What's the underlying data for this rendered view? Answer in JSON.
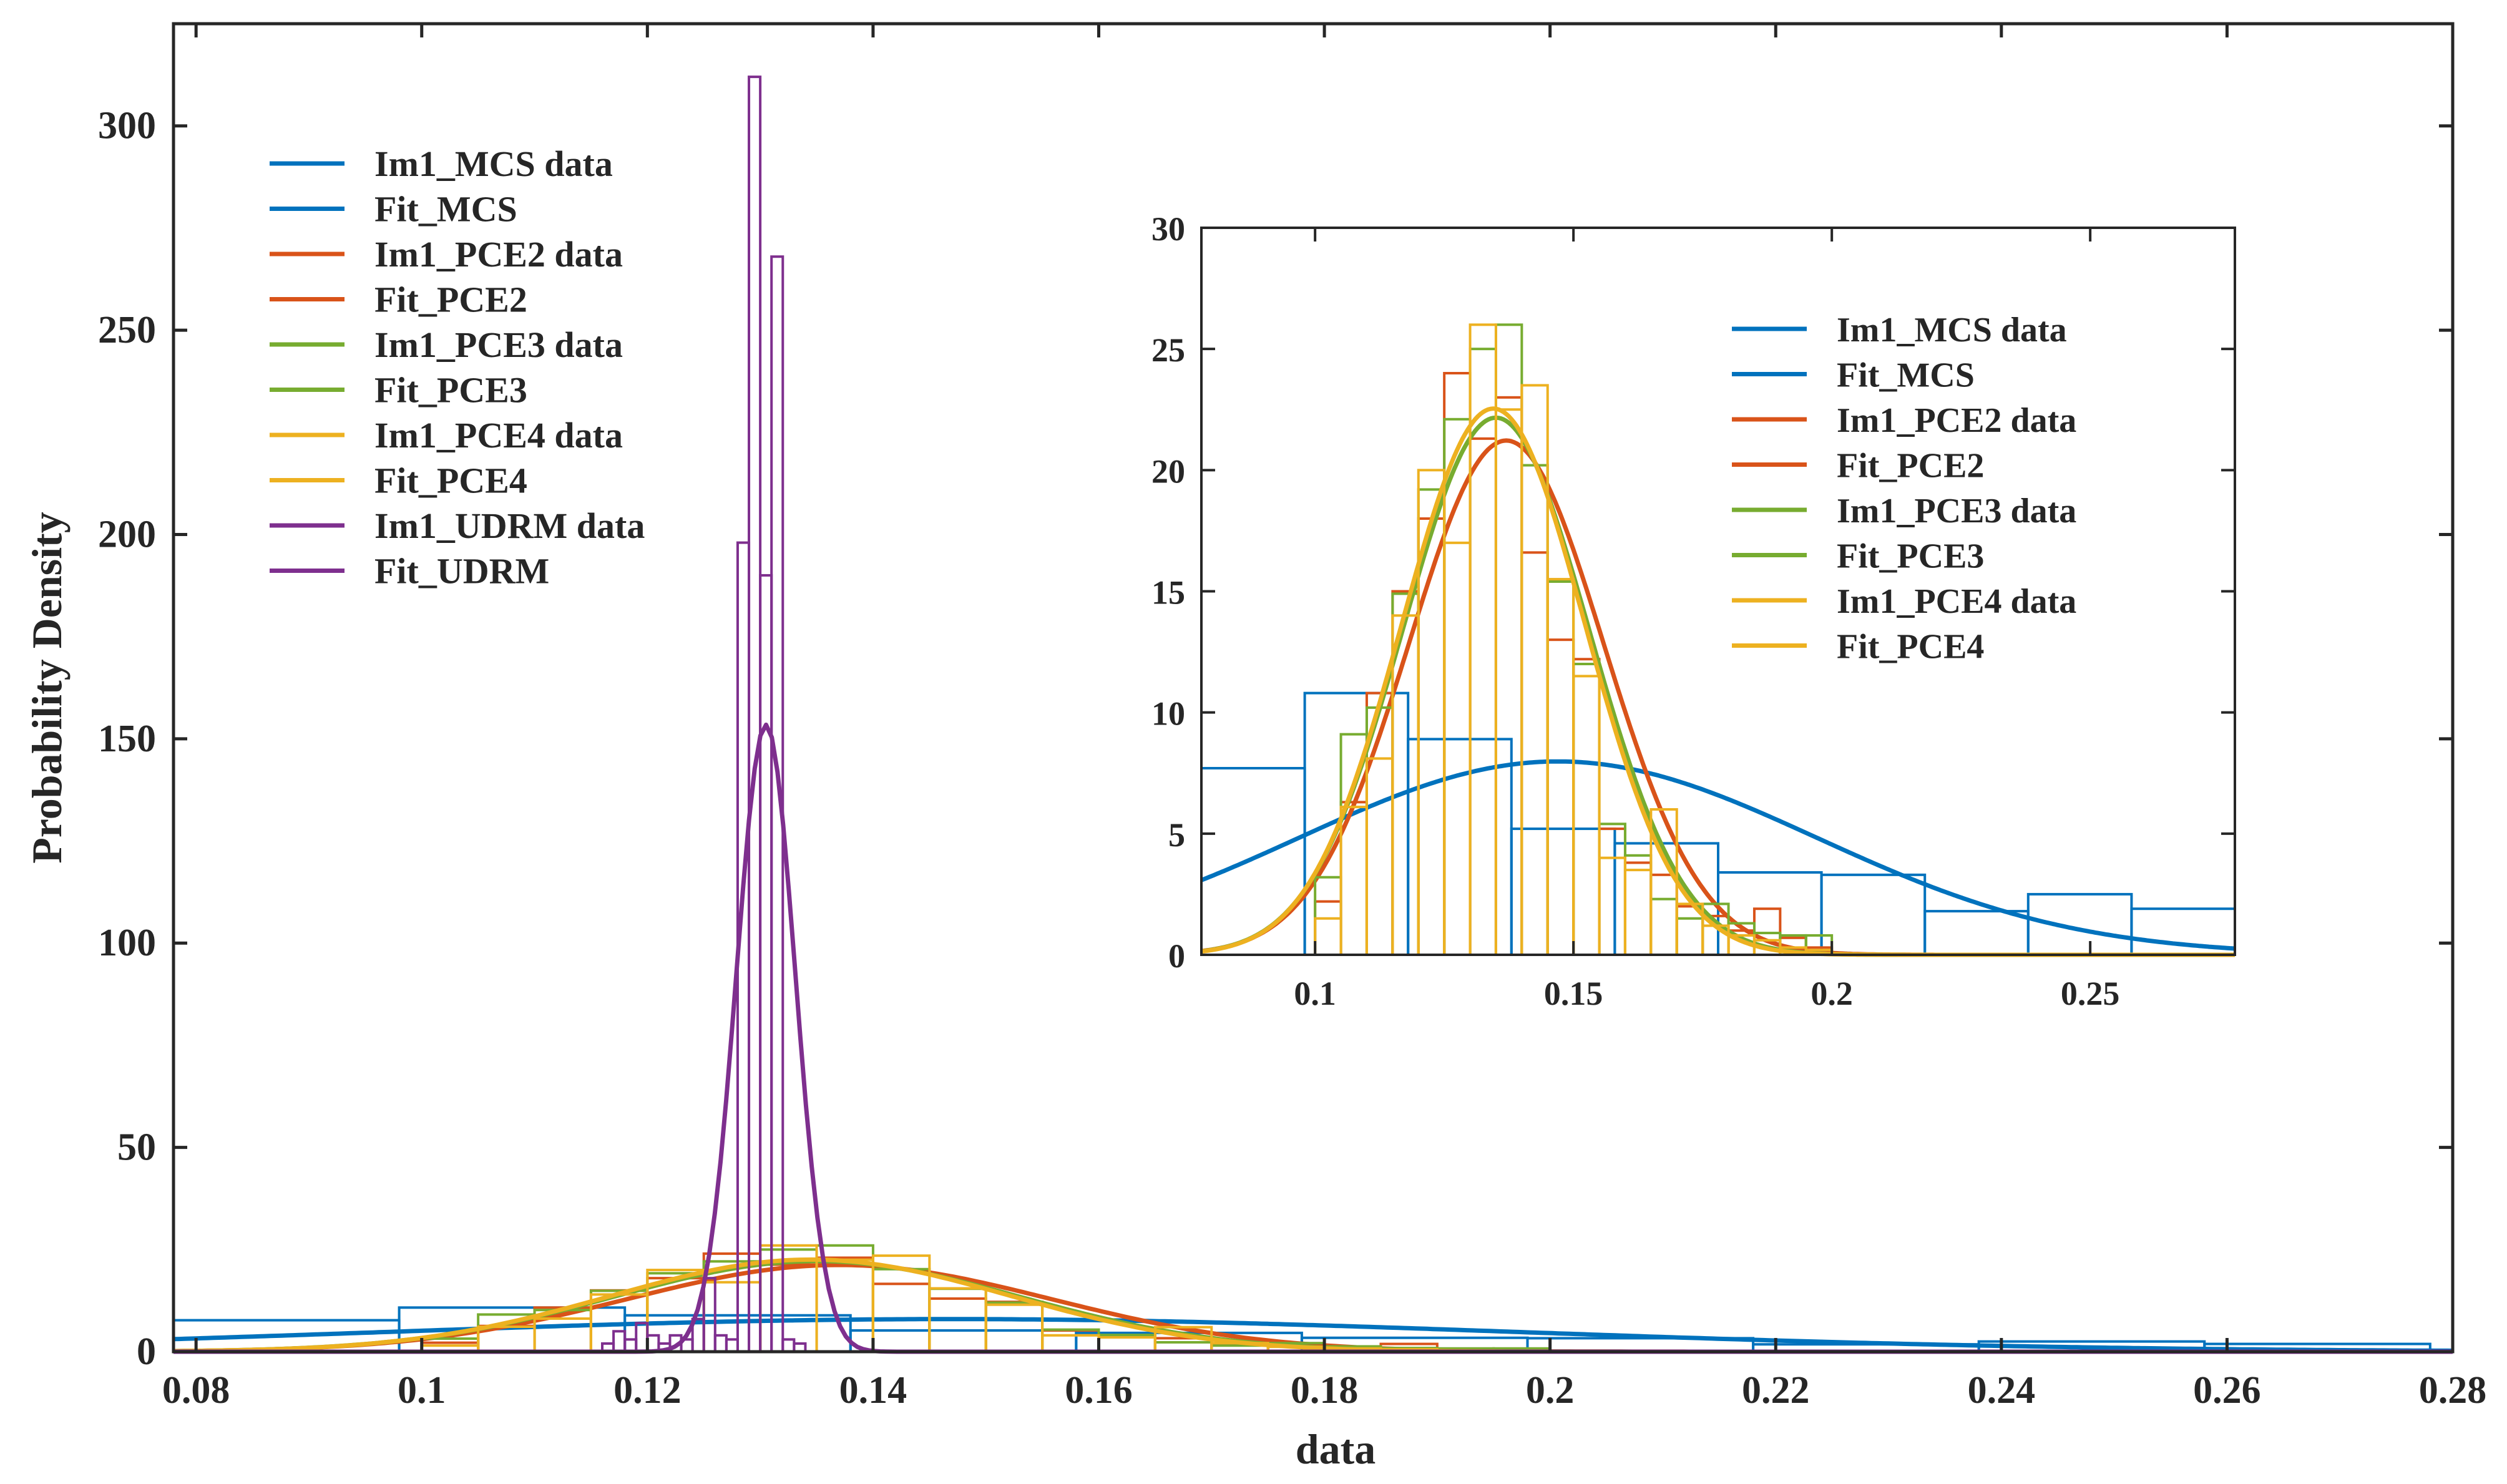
{
  "chart_data": [
    {
      "type": "histogram",
      "panel": "main",
      "xlabel": "data",
      "ylabel": "Probability Density",
      "xlim": [
        0.078,
        0.28
      ],
      "ylim": [
        0,
        325
      ],
      "xticks": [
        0.08,
        0.1,
        0.12,
        0.14,
        0.16,
        0.18,
        0.2,
        0.22,
        0.24,
        0.26,
        0.28
      ],
      "xtick_labels": [
        "0.08",
        "0.1",
        "0.12",
        "0.14",
        "0.16",
        "0.18",
        "0.2",
        "0.22",
        "0.24",
        "0.26",
        "0.28"
      ],
      "yticks": [
        0,
        50,
        100,
        150,
        200,
        250,
        300
      ],
      "ytick_labels": [
        "0",
        "50",
        "100",
        "150",
        "200",
        "250",
        "300"
      ],
      "legend_position": "top-left",
      "legend": [
        {
          "label": "Im1_MCS data",
          "color": "#0072BD"
        },
        {
          "label": "Fit_MCS",
          "color": "#0072BD"
        },
        {
          "label": "Im1_PCE2 data",
          "color": "#D95319"
        },
        {
          "label": "Fit_PCE2",
          "color": "#D95319"
        },
        {
          "label": "Im1_PCE3 data",
          "color": "#77AC30"
        },
        {
          "label": "Fit_PCE3",
          "color": "#77AC30"
        },
        {
          "label": "Im1_PCE4 data",
          "color": "#EDB120"
        },
        {
          "label": "Fit_PCE4",
          "color": "#EDB120"
        },
        {
          "label": "Im1_UDRM data",
          "color": "#7E2F8E"
        },
        {
          "label": "Fit_UDRM",
          "color": "#7E2F8E"
        }
      ],
      "series": [
        {
          "name": "Im1_MCS data",
          "kind": "histogram",
          "color": "#0072BD",
          "edges": [
            0.078,
            0.098,
            0.118,
            0.138,
            0.158,
            0.178,
            0.198,
            0.218,
            0.238,
            0.258,
            0.278
          ],
          "values": [
            7.7,
            10.8,
            8.9,
            5.2,
            4.6,
            3.4,
            3.3,
            1.8,
            2.5,
            1.9
          ]
        },
        {
          "name": "Fit_MCS",
          "kind": "normal",
          "color": "#0072BD",
          "mu": 0.147,
          "sigma": 0.05
        },
        {
          "name": "Im1_PCE2 data",
          "kind": "histogram",
          "color": "#D95319",
          "edges": [
            0.1,
            0.105,
            0.11,
            0.115,
            0.12,
            0.125,
            0.13,
            0.135,
            0.14,
            0.145,
            0.15,
            0.155,
            0.16,
            0.165,
            0.17,
            0.175,
            0.18,
            0.185,
            0.19,
            0.195,
            0.2
          ],
          "values": [
            2.2,
            6.3,
            10.8,
            15.0,
            18.0,
            24.0,
            21.3,
            23.0,
            16.6,
            13.0,
            12.2,
            5.2,
            3.8,
            3.3,
            2.0,
            1.6,
            1.0,
            1.9,
            0.7,
            0.3
          ]
        },
        {
          "name": "Fit_PCE2",
          "kind": "normal",
          "color": "#D95319",
          "mu": 0.137,
          "sigma": 0.0188
        },
        {
          "name": "Im1_PCE3 data",
          "kind": "histogram",
          "color": "#77AC30",
          "edges": [
            0.1,
            0.105,
            0.11,
            0.115,
            0.12,
            0.125,
            0.13,
            0.135,
            0.14,
            0.145,
            0.15,
            0.155,
            0.16,
            0.165,
            0.17,
            0.175,
            0.18,
            0.185,
            0.19,
            0.195,
            0.2
          ],
          "values": [
            3.2,
            9.1,
            10.2,
            14.9,
            19.2,
            22.1,
            25.0,
            26.0,
            20.2,
            15.4,
            12.0,
            5.4,
            4.1,
            2.3,
            1.5,
            2.1,
            1.3,
            0.9,
            0.8,
            0.8
          ]
        },
        {
          "name": "Fit_PCE3",
          "kind": "normal",
          "color": "#77AC30",
          "mu": 0.135,
          "sigma": 0.018
        },
        {
          "name": "Im1_PCE4 data",
          "kind": "histogram",
          "color": "#EDB120",
          "edges": [
            0.1,
            0.105,
            0.11,
            0.115,
            0.12,
            0.125,
            0.13,
            0.135,
            0.14,
            0.145,
            0.15,
            0.155,
            0.16,
            0.165,
            0.17,
            0.175,
            0.18,
            0.185,
            0.19,
            0.195,
            0.2
          ],
          "values": [
            1.5,
            6.1,
            8.1,
            14.0,
            20.0,
            17.0,
            26.0,
            22.5,
            23.5,
            15.5,
            11.5,
            4.0,
            3.5,
            6.0,
            2.1,
            1.2,
            0.8,
            0.6,
            0.3,
            0.2
          ]
        },
        {
          "name": "Fit_PCE4",
          "kind": "normal",
          "color": "#EDB120",
          "mu": 0.1345,
          "sigma": 0.0177
        },
        {
          "name": "Im1_UDRM data",
          "kind": "histogram",
          "color": "#7E2F8E",
          "edges": [
            0.116,
            0.117,
            0.118,
            0.119,
            0.12,
            0.121,
            0.122,
            0.123,
            0.124,
            0.125,
            0.126,
            0.127,
            0.128,
            0.129,
            0.13,
            0.131,
            0.132,
            0.133,
            0.134,
            0.135
          ],
          "values": [
            2,
            5,
            3,
            7,
            4,
            2,
            4,
            3,
            8,
            18,
            4,
            3,
            198,
            312,
            190,
            268,
            3,
            2,
            0
          ]
        },
        {
          "name": "Fit_UDRM",
          "kind": "normal",
          "color": "#7E2F8E",
          "mu": 0.1305,
          "sigma": 0.0026
        }
      ]
    },
    {
      "type": "histogram",
      "panel": "inset",
      "xlim": [
        0.078,
        0.278
      ],
      "ylim": [
        0,
        30
      ],
      "xticks": [
        0.1,
        0.15,
        0.2,
        0.25
      ],
      "xtick_labels": [
        "0.1",
        "0.15",
        "0.2",
        "0.25"
      ],
      "yticks": [
        0,
        5,
        10,
        15,
        20,
        25,
        30
      ],
      "ytick_labels": [
        "0",
        "5",
        "10",
        "15",
        "20",
        "25",
        "30"
      ],
      "legend_position": "top-right",
      "legend": [
        {
          "label": "Im1_MCS data",
          "color": "#0072BD"
        },
        {
          "label": "Fit_MCS",
          "color": "#0072BD"
        },
        {
          "label": "Im1_PCE2 data",
          "color": "#D95319"
        },
        {
          "label": "Fit_PCE2",
          "color": "#D95319"
        },
        {
          "label": "Im1_PCE3 data",
          "color": "#77AC30"
        },
        {
          "label": "Fit_PCE3",
          "color": "#77AC30"
        },
        {
          "label": "Im1_PCE4 data",
          "color": "#EDB120"
        },
        {
          "label": "Fit_PCE4",
          "color": "#EDB120"
        }
      ],
      "series_ref": [
        "Im1_MCS data",
        "Fit_MCS",
        "Im1_PCE2 data",
        "Fit_PCE2",
        "Im1_PCE3 data",
        "Fit_PCE3",
        "Im1_PCE4 data",
        "Fit_PCE4"
      ]
    }
  ]
}
